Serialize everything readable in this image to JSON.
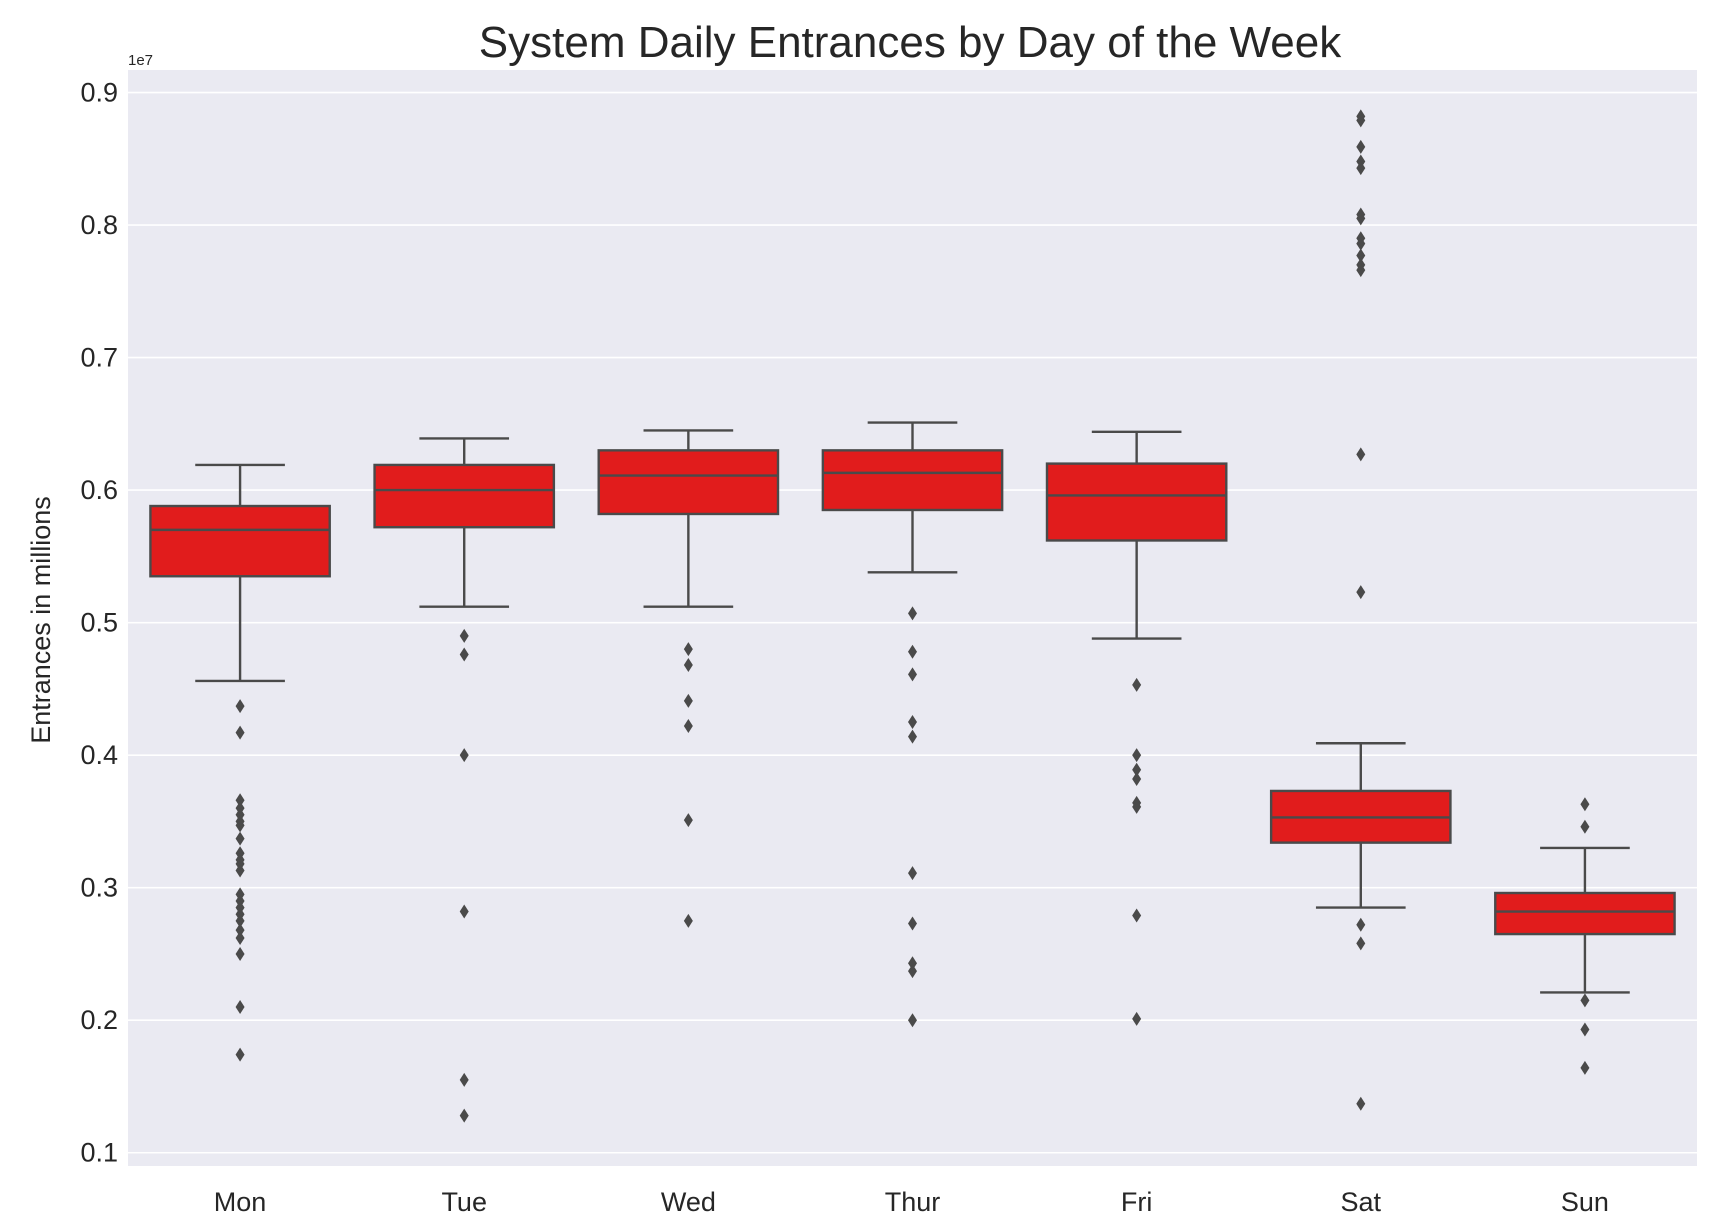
{
  "chart_data": {
    "type": "box",
    "title": "System Daily Entrances by Day of the Week",
    "xlabel": "",
    "ylabel": "Entrances in millions",
    "y_offset_label": "1e7",
    "ylim": [
      0.09,
      0.917
    ],
    "yticks": [
      0.1,
      0.2,
      0.3,
      0.4,
      0.5,
      0.6,
      0.7,
      0.8,
      0.9
    ],
    "ytick_labels": [
      "0.1",
      "0.2",
      "0.3",
      "0.4",
      "0.5",
      "0.6",
      "0.7",
      "0.8",
      "0.9"
    ],
    "grid": true,
    "legend": "none",
    "colors": {
      "box": "#e11c1c",
      "line": "#4a4a4a",
      "background": "#eaeaf2",
      "grid": "#ffffff"
    },
    "categories": [
      "Mon",
      "Tue",
      "Wed",
      "Thur",
      "Fri",
      "Sat",
      "Sun"
    ],
    "boxes": [
      {
        "label": "Mon",
        "whisker_low": 0.456,
        "q1": 0.535,
        "median": 0.57,
        "q3": 0.588,
        "whisker_high": 0.619,
        "outliers": [
          0.437,
          0.417,
          0.366,
          0.36,
          0.355,
          0.35,
          0.347,
          0.337,
          0.326,
          0.321,
          0.318,
          0.313,
          0.295,
          0.29,
          0.285,
          0.28,
          0.275,
          0.268,
          0.262,
          0.25,
          0.21,
          0.174
        ]
      },
      {
        "label": "Tue",
        "whisker_low": 0.512,
        "q1": 0.572,
        "median": 0.6,
        "q3": 0.619,
        "whisker_high": 0.639,
        "outliers": [
          0.49,
          0.476,
          0.4,
          0.282,
          0.155,
          0.128
        ]
      },
      {
        "label": "Wed",
        "whisker_low": 0.512,
        "q1": 0.582,
        "median": 0.611,
        "q3": 0.63,
        "whisker_high": 0.645,
        "outliers": [
          0.48,
          0.468,
          0.441,
          0.422,
          0.351,
          0.275
        ]
      },
      {
        "label": "Thur",
        "whisker_low": 0.538,
        "q1": 0.585,
        "median": 0.613,
        "q3": 0.63,
        "whisker_high": 0.651,
        "outliers": [
          0.507,
          0.478,
          0.461,
          0.425,
          0.414,
          0.311,
          0.273,
          0.243,
          0.237,
          0.2
        ]
      },
      {
        "label": "Fri",
        "whisker_low": 0.488,
        "q1": 0.562,
        "median": 0.596,
        "q3": 0.62,
        "whisker_high": 0.644,
        "outliers": [
          0.453,
          0.4,
          0.389,
          0.382,
          0.364,
          0.361,
          0.279,
          0.201
        ]
      },
      {
        "label": "Sat",
        "whisker_low": 0.285,
        "q1": 0.334,
        "median": 0.353,
        "q3": 0.373,
        "whisker_high": 0.409,
        "outliers": [
          0.882,
          0.879,
          0.859,
          0.848,
          0.843,
          0.808,
          0.805,
          0.79,
          0.786,
          0.777,
          0.77,
          0.766,
          0.627,
          0.523,
          0.272,
          0.258,
          0.137
        ]
      },
      {
        "label": "Sun",
        "whisker_low": 0.221,
        "q1": 0.265,
        "median": 0.282,
        "q3": 0.296,
        "whisker_high": 0.33,
        "outliers": [
          0.363,
          0.346,
          0.215,
          0.193,
          0.164
        ]
      }
    ]
  }
}
